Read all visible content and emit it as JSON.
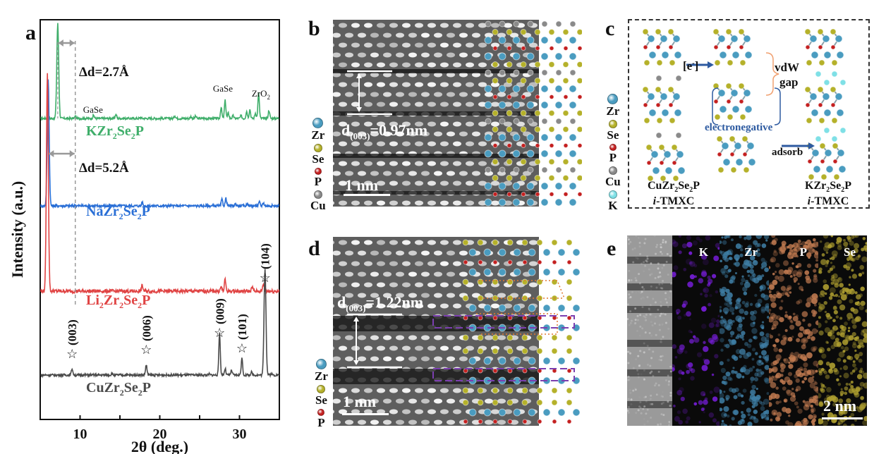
{
  "panels": {
    "a": {
      "label": "a"
    },
    "b": {
      "label": "b",
      "d_label_main": "d",
      "d_label_sub": "(003)",
      "d_value": "=0.97nm",
      "scale": "1 nm",
      "legend": [
        {
          "el": "Zr",
          "color": "#4a9cc0"
        },
        {
          "el": "Se",
          "color": "#b5b12a"
        },
        {
          "el": "P",
          "color": "#c42020"
        },
        {
          "el": "Cu",
          "color": "#8a8a8a"
        }
      ]
    },
    "c": {
      "label": "c",
      "arrow1": "[e",
      "arrow1_sup": "-",
      "arrow1_close": "]",
      "vdw": "vdW",
      "gap": "gap",
      "electronegative": "electronegative",
      "adsorb": "adsorb",
      "left_formula": [
        "CuZr",
        "2",
        "Se",
        "2",
        "P"
      ],
      "right_formula": [
        "KZr",
        "2",
        "Se",
        "2",
        "P"
      ],
      "tmxc_prefix": "i",
      "tmxc_suffix": "-TMXC",
      "legend": [
        {
          "el": "Zr",
          "color": "#4a9cc0"
        },
        {
          "el": "Se",
          "color": "#b5b12a"
        },
        {
          "el": "P",
          "color": "#c42020"
        },
        {
          "el": "Cu",
          "color": "#8a8a8a"
        },
        {
          "el": "K",
          "color": "#7fe0e6"
        }
      ]
    },
    "d": {
      "label": "d",
      "d_label_main": "d",
      "d_label_sub": "(003)",
      "d_value": "=1.22nm",
      "scale": "1 nm",
      "legend": [
        {
          "el": "Zr",
          "color": "#4a9cc0"
        },
        {
          "el": "Se",
          "color": "#b5b12a"
        },
        {
          "el": "P",
          "color": "#c42020"
        }
      ]
    },
    "e": {
      "label": "e",
      "maps": [
        {
          "el": "",
          "color": "#9a9a9a"
        },
        {
          "el": "K",
          "color": "#7a1ee0"
        },
        {
          "el": "Zr",
          "color": "#3f7fa6"
        },
        {
          "el": "P",
          "color": "#c07a50"
        },
        {
          "el": "Se",
          "color": "#b0a030"
        }
      ],
      "scale": "2 nm"
    }
  },
  "chart_data": {
    "type": "line",
    "title": "",
    "xlabel": "2θ (deg.)",
    "ylabel": "Intensity (a.u.)",
    "xlim": [
      5,
      35
    ],
    "xticks": [
      10,
      20,
      30
    ],
    "grid": false,
    "series": [
      {
        "name": "KZr2Se2P",
        "label_parts": [
          "KZr",
          "2",
          "Se",
          "2",
          "P"
        ],
        "color": "#3fae6a",
        "baseline_offset": 3,
        "peaks": [
          [
            7.2,
            10.5
          ],
          [
            9.4,
            0.2
          ],
          [
            11.7,
            0.35
          ],
          [
            14.5,
            0.45
          ],
          [
            17.6,
            0.1
          ],
          [
            21.9,
            0.3
          ],
          [
            23.9,
            0.2
          ],
          [
            24.5,
            0.25
          ],
          [
            27.7,
            1.2
          ],
          [
            28.2,
            2.0
          ],
          [
            28.6,
            0.6
          ],
          [
            29.2,
            0.3
          ],
          [
            30.2,
            0.3
          ],
          [
            30.9,
            0.8
          ],
          [
            31.3,
            1.0
          ],
          [
            32.0,
            0.6
          ],
          [
            32.4,
            2.8
          ],
          [
            33.7,
            0.9
          ]
        ],
        "annotations": [
          {
            "text": "GaSe",
            "x": 11.7
          },
          {
            "text": "GaSe",
            "x": 28.0
          },
          {
            "text": "ZrO",
            "sub": "2",
            "x": 31.8
          }
        ]
      },
      {
        "name": "NaZr2Se2P",
        "label_parts": [
          "NaZr",
          "2",
          "Se",
          "2",
          "P"
        ],
        "color": "#2a6fd6",
        "baseline_offset": 2,
        "peaks": [
          [
            6.0,
            12.0
          ],
          [
            17.8,
            0.35
          ],
          [
            27.8,
            0.6
          ],
          [
            28.3,
            0.7
          ],
          [
            29.5,
            0.2
          ],
          [
            31.0,
            0.25
          ],
          [
            32.5,
            0.35
          ],
          [
            33.0,
            0.3
          ]
        ]
      },
      {
        "name": "Li2Zr2Se2P",
        "label_parts": [
          "Li",
          "2",
          "Zr",
          "2",
          "Se",
          "2",
          "P"
        ],
        "color": "#e04444",
        "baseline_offset": 1,
        "peaks": [
          [
            5.9,
            15.0
          ],
          [
            17.8,
            0.4
          ],
          [
            27.7,
            0.3
          ],
          [
            28.2,
            0.8
          ],
          [
            31.6,
            0.3
          ],
          [
            33.0,
            0.5
          ]
        ]
      },
      {
        "name": "CuZr2Se2P",
        "label_parts": [
          "CuZr",
          "2",
          "Se",
          "2",
          "P"
        ],
        "color": "#4a4a4a",
        "baseline_offset": 0,
        "peaks": [
          [
            9.0,
            0.7
          ],
          [
            14.0,
            0.15
          ],
          [
            18.3,
            1.1
          ],
          [
            26.2,
            0.1
          ],
          [
            27.5,
            4.6
          ],
          [
            28.2,
            0.7
          ],
          [
            29.0,
            0.5
          ],
          [
            30.3,
            1.8
          ],
          [
            31.5,
            0.3
          ],
          [
            33.2,
            11.5
          ],
          [
            34.0,
            0.15
          ]
        ],
        "hkl": [
          {
            "x": 9.0,
            "text": "(003)"
          },
          {
            "x": 18.3,
            "text": "(006)"
          },
          {
            "x": 27.5,
            "text": "(009)"
          },
          {
            "x": 30.3,
            "text": "(101)"
          },
          {
            "x": 33.2,
            "text": "(104)"
          }
        ]
      }
    ],
    "annotations": [
      {
        "text": "Δd=2.7Å",
        "from_x": 7.2,
        "to_x": 9.4
      },
      {
        "text": "Δd=5.2Å",
        "from_x": 6.0,
        "to_x": 9.4
      }
    ],
    "reference_line_x": 9.4
  }
}
